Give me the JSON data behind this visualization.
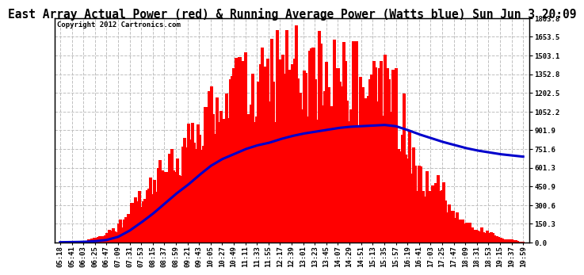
{
  "title": "East Array Actual Power (red) & Running Average Power (Watts blue) Sun Jun 3 20:09",
  "copyright": "Copyright 2012 Cartronics.com",
  "ylabel_right_ticks": [
    0.0,
    150.3,
    300.6,
    450.9,
    601.3,
    751.6,
    901.9,
    1052.2,
    1202.5,
    1352.8,
    1503.1,
    1653.5,
    1803.8
  ],
  "ylim": [
    0,
    1803.8
  ],
  "background_color": "#ffffff",
  "plot_bg_color": "#ffffff",
  "grid_color": "#c0c0c0",
  "red_color": "#ff0000",
  "blue_color": "#0000cc",
  "x_labels": [
    "05:18",
    "05:41",
    "06:03",
    "06:25",
    "06:47",
    "07:09",
    "07:31",
    "07:53",
    "08:15",
    "08:37",
    "08:59",
    "09:21",
    "09:43",
    "10:05",
    "10:27",
    "10:49",
    "11:11",
    "11:33",
    "11:55",
    "12:17",
    "12:39",
    "13:01",
    "13:23",
    "13:45",
    "14:07",
    "14:29",
    "14:51",
    "15:13",
    "15:35",
    "15:57",
    "16:19",
    "16:41",
    "17:03",
    "17:25",
    "17:47",
    "18:09",
    "18:31",
    "18:53",
    "19:15",
    "19:37",
    "19:59"
  ],
  "actual_power_envelope": [
    2,
    5,
    15,
    40,
    80,
    160,
    300,
    480,
    620,
    720,
    820,
    950,
    1100,
    1280,
    1380,
    1500,
    1600,
    1650,
    1700,
    1750,
    1780,
    1803,
    1780,
    1760,
    1720,
    1680,
    1640,
    1580,
    1520,
    1450,
    1100,
    690,
    620,
    560,
    280,
    200,
    150,
    110,
    60,
    25,
    5
  ],
  "running_avg": [
    2,
    3,
    5,
    10,
    20,
    45,
    95,
    160,
    230,
    310,
    390,
    460,
    540,
    615,
    670,
    710,
    750,
    780,
    800,
    830,
    855,
    875,
    890,
    905,
    920,
    930,
    935,
    940,
    945,
    935,
    905,
    870,
    840,
    810,
    785,
    760,
    740,
    725,
    710,
    700,
    690
  ],
  "title_fontsize": 10.5,
  "copyright_fontsize": 6.5,
  "tick_fontsize": 6.5
}
